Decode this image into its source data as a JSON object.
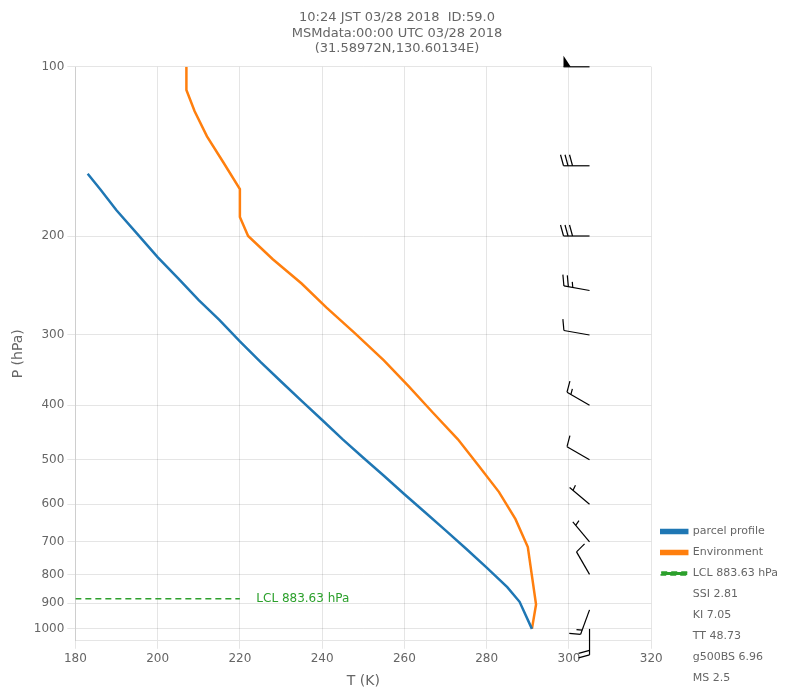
{
  "chart_data": {
    "type": "line",
    "title": "10:24 JST 03/28 2018  ID:59.0\nMSMdata:00:00 UTC 03/28 2018\n(31.58972N,130.60134E)",
    "x_label": "T (K)",
    "y_label": "P (hPa)",
    "log": "y",
    "grid": true,
    "legend": "lower right",
    "xlim": [
      180,
      320
    ],
    "xticks": [
      180,
      200,
      220,
      240,
      260,
      280,
      300,
      320
    ],
    "ylim": [
      1050,
      100
    ],
    "yticks": [
      100,
      200,
      300,
      400,
      500,
      600,
      700,
      800,
      900,
      1000
    ],
    "series": [
      {
        "name": "parcel profile",
        "color": "#1f77b4",
        "x": [
          183,
          186,
          190,
          195,
          200,
          205,
          210,
          215,
          220,
          225,
          230,
          235,
          240,
          245,
          250,
          255,
          260,
          265,
          270,
          275,
          280,
          285,
          288,
          291
        ],
        "values": [
          155,
          165,
          180,
          198,
          218,
          238,
          260,
          282,
          308,
          335,
          363,
          393,
          425,
          460,
          496,
          534,
          576,
          620,
          668,
          720,
          778,
          843,
          895,
          1000
        ]
      },
      {
        "name": "Environment",
        "color": "#ff7f0e",
        "x": [
          207,
          207,
          207,
          209,
          212,
          216,
          220,
          220,
          220,
          222,
          228,
          235,
          241,
          248,
          255,
          261,
          267,
          273,
          278,
          283,
          287,
          290,
          291,
          292,
          291
        ],
        "values": [
          100,
          105,
          110,
          120,
          133,
          148,
          165,
          175,
          185,
          200,
          220,
          243,
          268,
          298,
          333,
          370,
          413,
          460,
          512,
          571,
          638,
          715,
          805,
          905,
          1000
        ]
      },
      {
        "name": "LCL 883.63 hPa",
        "color": "#2ca02c",
        "line_style": "dashed",
        "x": [
          180,
          220
        ],
        "values": [
          883.63,
          883.63
        ]
      }
    ],
    "legend_notes": [
      "SSI 2.81",
      "KI 7.05",
      "TT 48.73",
      "g500BS 6.96",
      "MS 2.5"
    ],
    "annotations": [
      {
        "text": "LCL 883.63 hPa",
        "x": 224,
        "y": 883.63,
        "color": "#2ca02c"
      }
    ],
    "wind_barbs": {
      "x": 305,
      "color": "black",
      "pressures": [
        100,
        150,
        200,
        250,
        300,
        400,
        500,
        600,
        700,
        800,
        925,
        1000
      ],
      "speeds": [
        50,
        30,
        30,
        25,
        10,
        15,
        10,
        5,
        5,
        10,
        15,
        20
      ],
      "directions": [
        270,
        270,
        270,
        280,
        280,
        300,
        300,
        310,
        320,
        330,
        200,
        180
      ]
    }
  }
}
